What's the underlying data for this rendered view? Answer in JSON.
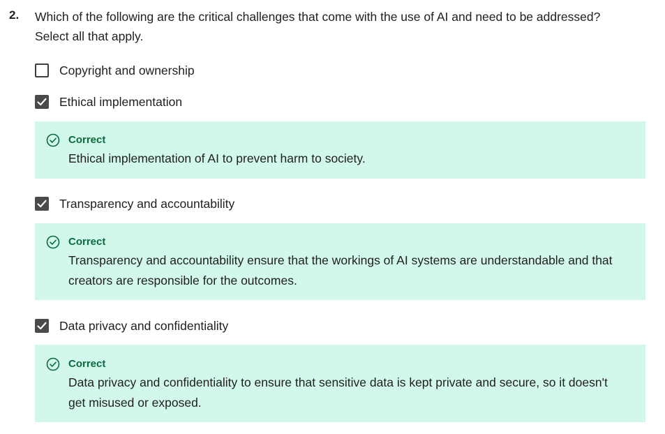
{
  "question": {
    "number": "2.",
    "text_line1": "Which of the following are the critical challenges that come with the use of AI and need to be addressed?",
    "text_line2": "Select all that apply."
  },
  "options": [
    {
      "label": "Copyright and ownership",
      "checked": false
    },
    {
      "label": "Ethical implementation",
      "checked": true
    },
    {
      "label": "Transparency and accountability",
      "checked": true
    },
    {
      "label": "Data privacy and confidentiality",
      "checked": true
    }
  ],
  "feedback": [
    {
      "title": "Correct",
      "line1": "Ethical implementation of AI to prevent harm to society.",
      "line2": ""
    },
    {
      "title": "Correct",
      "line1": "Transparency and accountability ensure that the workings of AI systems are understandable and that",
      "line2": "creators are responsible for the outcomes."
    },
    {
      "title": "Correct",
      "line1": "Data privacy and confidentiality to ensure that sensitive data is kept private and secure, so it doesn't",
      "line2": "get misused or exposed."
    }
  ],
  "colors": {
    "feedback_background": "#d2f8ec",
    "correct_green": "#0a6b3d",
    "checkbox_checked": "#4a4a4a"
  },
  "icons": {
    "checkbox_check": "checkmark-icon",
    "feedback": "check-circle-icon"
  }
}
